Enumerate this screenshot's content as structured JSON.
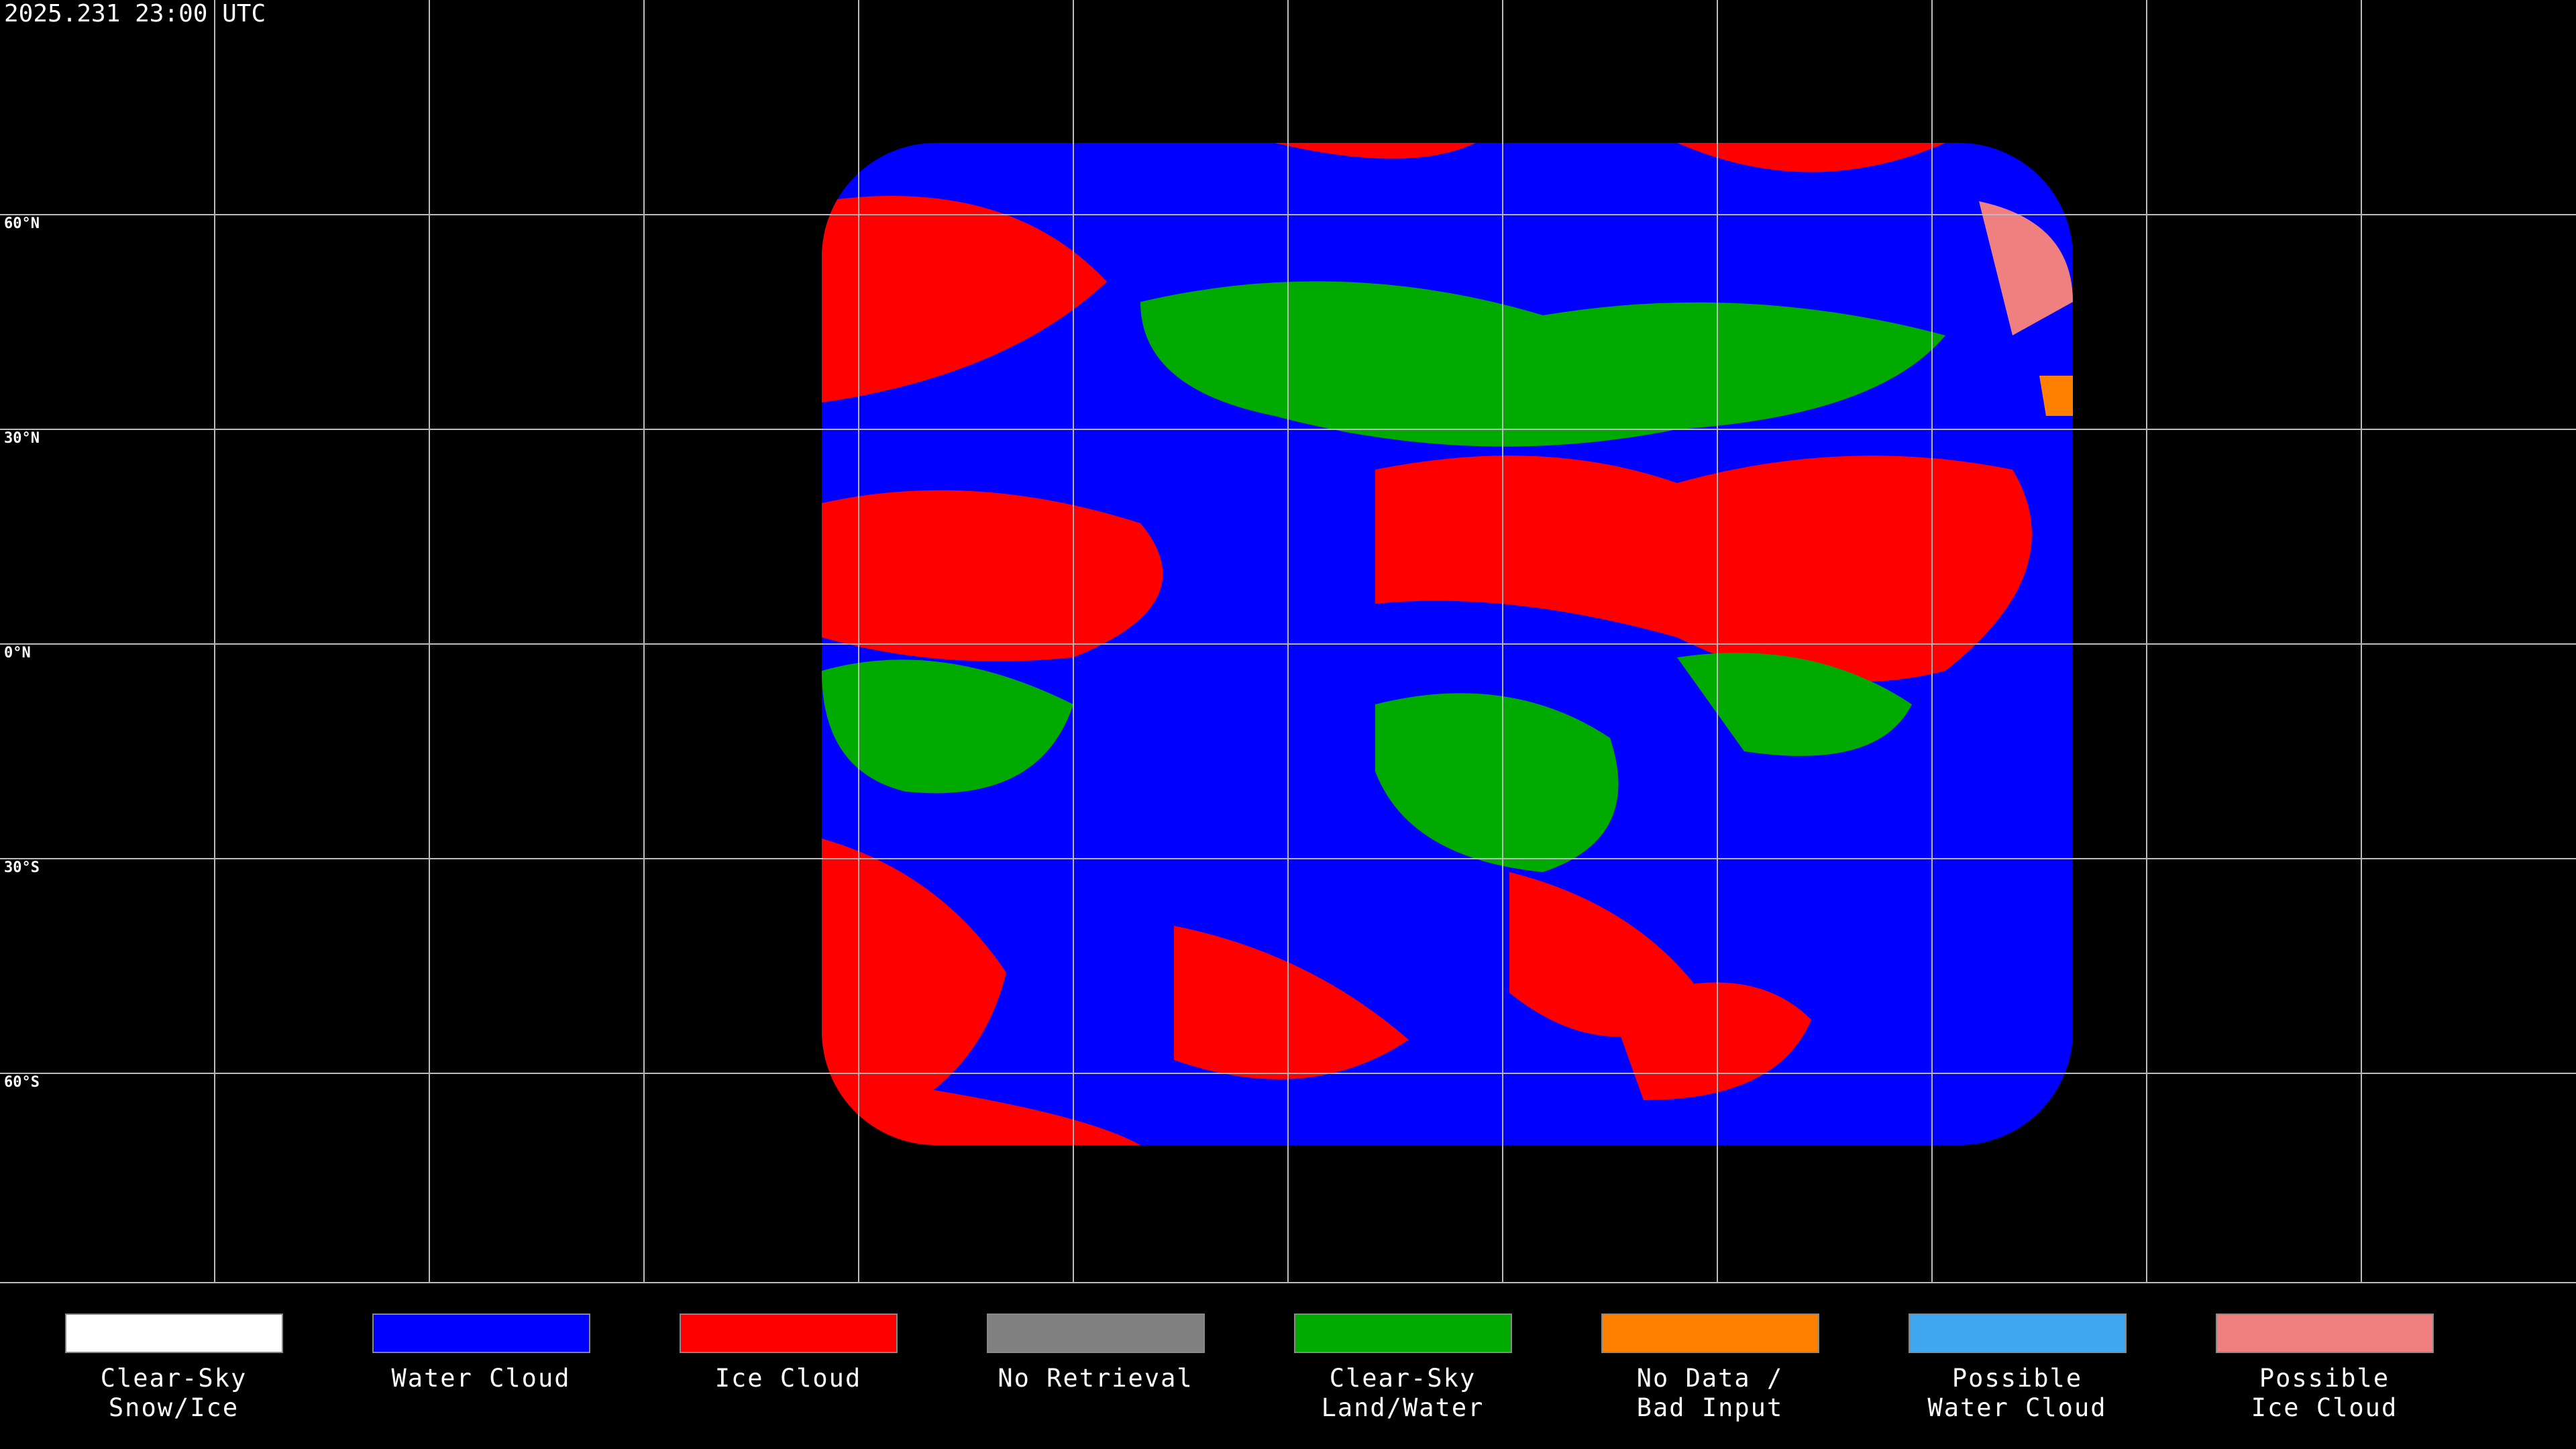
{
  "timestamp": "2025.231 23:00 UTC",
  "latitude_labels": [
    "60°N",
    "30°N",
    "0°N",
    "30°S",
    "60°S"
  ],
  "legend": [
    {
      "lines": [
        "Clear-Sky",
        "Snow/Ice"
      ],
      "color": "#ffffff"
    },
    {
      "lines": [
        "Water Cloud"
      ],
      "color": "#0000ff"
    },
    {
      "lines": [
        "Ice Cloud"
      ],
      "color": "#ff0000"
    },
    {
      "lines": [
        "No Retrieval"
      ],
      "color": "#808080"
    },
    {
      "lines": [
        "Clear-Sky",
        "Land/Water"
      ],
      "color": "#00aa00"
    },
    {
      "lines": [
        "No Data /",
        "Bad Input"
      ],
      "color": "#ff8000"
    },
    {
      "lines": [
        "Possible",
        "Water Cloud"
      ],
      "color": "#40a8f0"
    },
    {
      "lines": [
        "Possible",
        "Ice Cloud"
      ],
      "color": "#f08080"
    }
  ]
}
